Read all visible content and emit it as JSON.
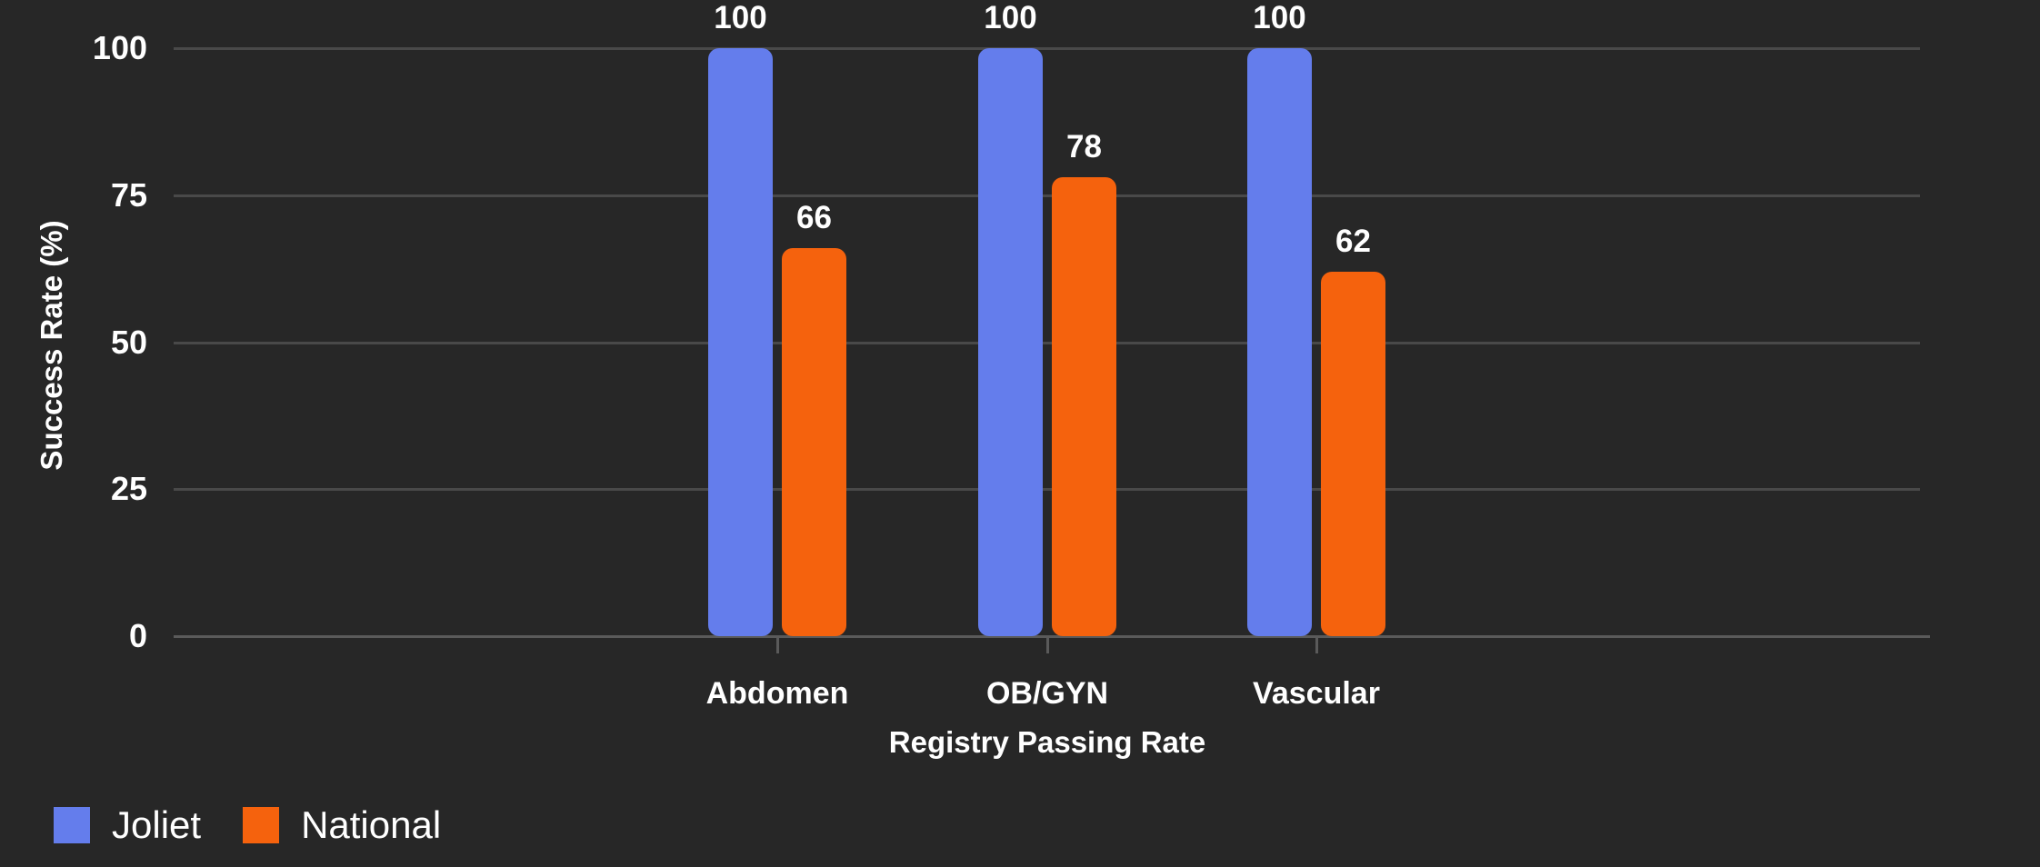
{
  "background_color": "#272727",
  "grid_color": "#494949",
  "axis_color": "#5A5A5A",
  "text_color": "#FFFFFF",
  "chart_data": {
    "type": "bar",
    "title": "",
    "categories": [
      "Abdomen",
      "OB/GYN",
      "Vascular"
    ],
    "series": [
      {
        "name": "Joliet",
        "color": "#647DEC",
        "values": [
          100,
          100,
          100
        ]
      },
      {
        "name": "National",
        "color": "#F5620D",
        "values": [
          66,
          78,
          62
        ]
      }
    ],
    "xlabel": "Registry Passing Rate",
    "ylabel": "Success Rate (%)",
    "ylim": [
      0,
      100
    ],
    "yticks": [
      0,
      25,
      50,
      75,
      100
    ],
    "grid": true,
    "data_labels": true,
    "legend": {
      "position": "bottom-left",
      "items": [
        "Joliet",
        "National"
      ]
    }
  }
}
